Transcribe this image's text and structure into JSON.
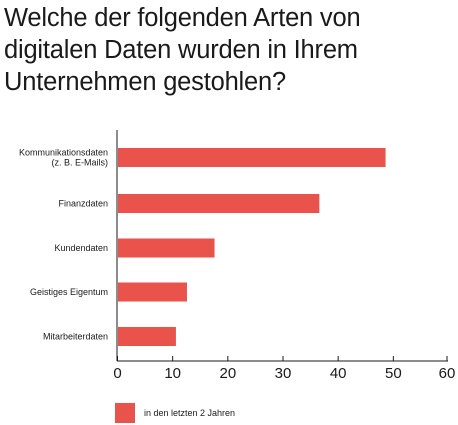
{
  "title_lines": [
    "Welche der folgenden Arten von",
    "digitalen Daten wurden in Ihrem",
    "Unternehmen gestohlen?"
  ],
  "colors": {
    "bar": "#ea524c",
    "axis": "#1a1a1a",
    "text": "#1a1a1a"
  },
  "chart_data": {
    "type": "bar",
    "orientation": "horizontal",
    "title": "Welche der folgenden Arten von digitalen Daten wurden in Ihrem Unternehmen gestohlen?",
    "categories": [
      [
        "Kommunikationsdaten",
        "(z. B. E-Mails)"
      ],
      [
        "Finanzdaten"
      ],
      [
        "Kundendaten"
      ],
      [
        "Geistiges Eigentum"
      ],
      [
        "Mitarbeiterdaten"
      ]
    ],
    "series": [
      {
        "name": "in den letzten 2 Jahren",
        "color": "#ea524c",
        "values": [
          48.5,
          36.5,
          17.5,
          12.5,
          10.5
        ]
      }
    ],
    "xlim": [
      0,
      60
    ],
    "xticks": [
      0,
      10,
      20,
      30,
      40,
      50,
      60
    ],
    "grid": false,
    "legend_position": "bottom-left"
  }
}
